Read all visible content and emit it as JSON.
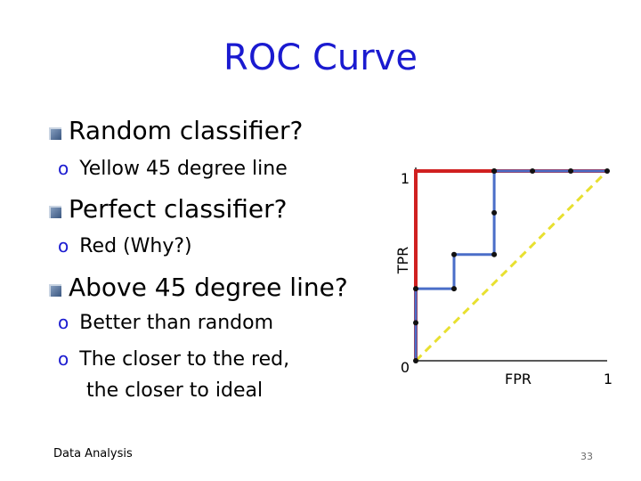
{
  "slide": {
    "title": "ROC Curve",
    "bullets": [
      {
        "text": "Random classifier?",
        "subs": [
          "Yellow 45 degree line"
        ]
      },
      {
        "text": "Perfect classifier?",
        "subs": [
          "Red (Why?)"
        ]
      },
      {
        "text": "Above 45 degree line?",
        "subs": [
          "Better than random",
          "The closer to the red,",
          "the closer to ideal"
        ]
      }
    ],
    "footer_left": "Data Analysis",
    "page_number": "33"
  },
  "chart_data": {
    "type": "line",
    "xlabel": "FPR",
    "ylabel": "TPR",
    "xlim": [
      0,
      1
    ],
    "ylim": [
      0,
      1
    ],
    "x_ticks": [
      "0",
      "1"
    ],
    "y_ticks": [
      "1"
    ],
    "series": [
      {
        "color": "#e8e030",
        "style": "dashed",
        "x": [
          0,
          1
        ],
        "y": [
          0,
          1
        ]
      },
      {
        "color": "#d02020",
        "style": "solid",
        "x": [
          0,
          0,
          1
        ],
        "y": [
          0,
          1,
          1
        ]
      },
      {
        "color": "#4a6ec8",
        "style": "solid",
        "markers": true,
        "x": [
          0,
          0,
          0,
          0.2,
          0.2,
          0.41,
          0.41,
          0.41,
          0.41,
          0.61,
          0.81,
          1.0
        ],
        "y": [
          0,
          0.2,
          0.38,
          0.38,
          0.56,
          0.56,
          0.78,
          1.0,
          1.0,
          1.0,
          1.0,
          1.0
        ]
      }
    ]
  }
}
